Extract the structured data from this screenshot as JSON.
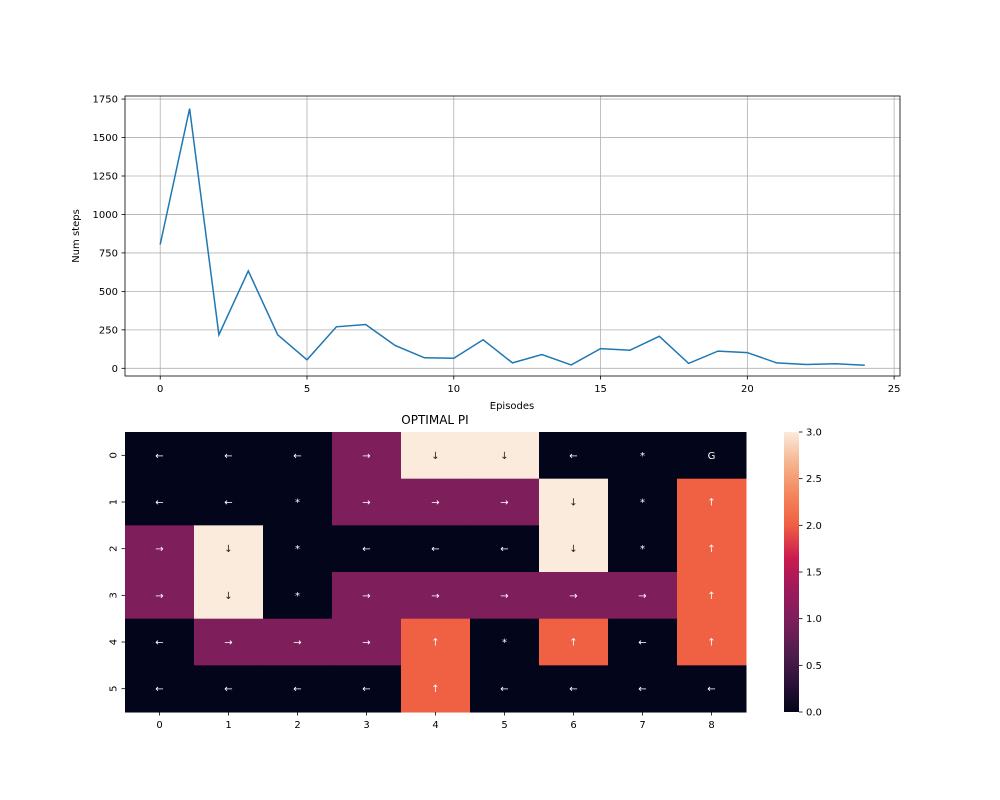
{
  "chart_data": [
    {
      "type": "line",
      "title": "",
      "xlabel": "Episodes",
      "ylabel": "Num steps",
      "xlim": [
        -1.2,
        25.2
      ],
      "ylim": [
        -50,
        1770
      ],
      "xticks": [
        0,
        5,
        10,
        15,
        20,
        25
      ],
      "yticks": [
        0,
        250,
        500,
        750,
        1000,
        1250,
        1500,
        1750
      ],
      "grid": true,
      "color": "#1f77b4",
      "series": [
        {
          "x": [
            0,
            1,
            2,
            3,
            4,
            5,
            6,
            7,
            8,
            9,
            10,
            11,
            12,
            13,
            14,
            15,
            16,
            17,
            18,
            19,
            20,
            21,
            22,
            23,
            24
          ],
          "values": [
            805,
            1688,
            218,
            633,
            218,
            55,
            270,
            285,
            148,
            68,
            65,
            185,
            35,
            90,
            22,
            128,
            118,
            208,
            32,
            112,
            102,
            35,
            25,
            30,
            20
          ]
        }
      ]
    },
    {
      "type": "heatmap",
      "title": "OPTIMAL PI",
      "row_labels": [
        "0",
        "1",
        "2",
        "3",
        "4",
        "5"
      ],
      "col_labels": [
        "0",
        "1",
        "2",
        "3",
        "4",
        "5",
        "6",
        "7",
        "8"
      ],
      "values": [
        [
          0,
          0,
          0,
          1,
          3,
          3,
          0,
          0,
          0
        ],
        [
          0,
          0,
          0,
          1,
          1,
          1,
          3,
          0,
          2
        ],
        [
          1,
          3,
          0,
          0,
          0,
          0,
          3,
          0,
          2
        ],
        [
          1,
          3,
          0,
          1,
          1,
          1,
          1,
          1,
          2
        ],
        [
          0,
          1,
          1,
          1,
          2,
          0,
          2,
          0,
          2
        ],
        [
          0,
          0,
          0,
          0,
          2,
          0,
          0,
          0,
          0
        ]
      ],
      "annotations": [
        [
          "←",
          "←",
          "←",
          "→",
          "↓",
          "↓",
          "←",
          "*",
          "G"
        ],
        [
          "←",
          "←",
          "*",
          "→",
          "→",
          "→",
          "↓",
          "*",
          "↑"
        ],
        [
          "→",
          "↓",
          "*",
          "←",
          "←",
          "←",
          "↓",
          "*",
          "↑"
        ],
        [
          "→",
          "↓",
          "*",
          "→",
          "→",
          "→",
          "→",
          "→",
          "↑"
        ],
        [
          "←",
          "→",
          "→",
          "→",
          "↑",
          "*",
          "↑",
          "←",
          "↑"
        ],
        [
          "←",
          "←",
          "←",
          "←",
          "↑",
          "←",
          "←",
          "←",
          "←"
        ]
      ],
      "colorbar": {
        "vmin": 0,
        "vmax": 3,
        "ticks": [
          "0.0",
          "0.5",
          "1.0",
          "1.5",
          "2.0",
          "2.5",
          "3.0"
        ],
        "colormap": "rocket"
      },
      "cell_colors": {
        "0": "#03051a",
        "1": "#7e1e5b",
        "2": "#f06043",
        "3": "#faebdd"
      }
    }
  ]
}
